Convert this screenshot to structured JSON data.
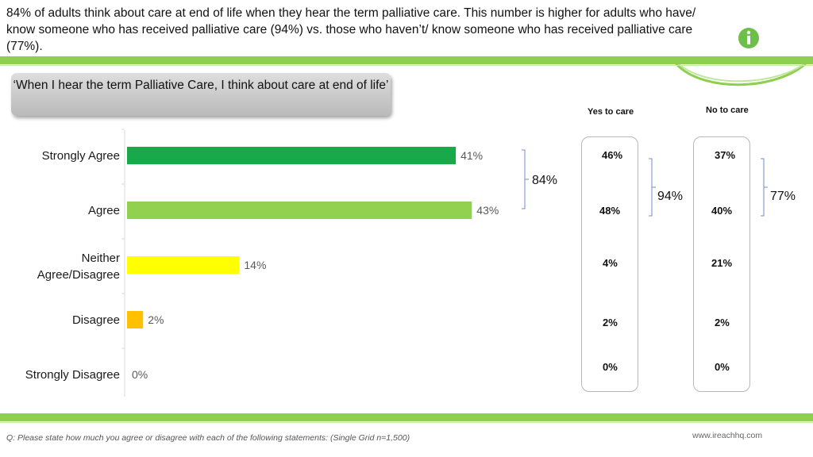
{
  "headline": "84% of adults think about care at end of life when they hear the term palliative care. This number is higher for adults who have/ know someone who has received palliative care (94%) vs. those who haven’t/ know someone who has received palliative care (77%).",
  "quote": "‘When I hear the term Palliative Care, I think about care at end of life’",
  "chart_data": {
    "type": "bar",
    "orientation": "horizontal",
    "categories": [
      "Strongly Agree",
      "Agree",
      "Neither Agree/Disagree",
      "Disagree",
      "Strongly Disagree"
    ],
    "values": [
      41,
      43,
      14,
      2,
      0
    ],
    "value_labels": [
      "41%",
      "43%",
      "14%",
      "2%",
      "0%"
    ],
    "unit": "%",
    "colors": [
      "#18a94a",
      "#92d050",
      "#ffff00",
      "#ffc000",
      "#ffc000"
    ],
    "grid": false,
    "legend": "none"
  },
  "agree_total": "84%",
  "columns": {
    "yes": {
      "title": "Yes to care",
      "values": [
        "46%",
        "48%",
        "4%",
        "2%",
        "0%"
      ],
      "agree_total": "94%"
    },
    "no": {
      "title": "No to care",
      "values": [
        "37%",
        "40%",
        "21%",
        "2%",
        "0%"
      ],
      "agree_total": "77%"
    }
  },
  "footnote": "Q: Please state how much you agree or disagree with each of the following statements: (Single Grid n=1,500)",
  "website": "www.ireachhq.com",
  "logo_icon": "info-icon",
  "brand_color": "#8fcf4f"
}
